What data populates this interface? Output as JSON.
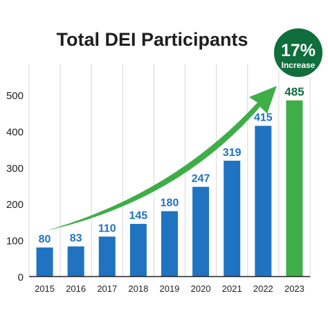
{
  "chart_data": {
    "type": "bar",
    "title": "Total DEI Participants",
    "categories": [
      "2015",
      "2016",
      "2017",
      "2018",
      "2019",
      "2020",
      "2021",
      "2022",
      "2023"
    ],
    "values": [
      80,
      83,
      110,
      145,
      180,
      247,
      319,
      415,
      485
    ],
    "ylim": [
      0,
      500
    ],
    "yticks": [
      0,
      100,
      200,
      300,
      400,
      500
    ],
    "xlabel": "",
    "ylabel": "",
    "grid": "vertical",
    "highlight_index": 8,
    "trend_arrow": true,
    "colors": {
      "bar": "#1f73c1",
      "bar_label": "#1f73c1",
      "highlight_bar": "#3fae49",
      "highlight_label": "#0f6e3b",
      "arrow": "#3fae49",
      "badge": "#0f6e3b",
      "title": "#1e1e1e",
      "axis": "#222222",
      "grid": "#d7d7d7"
    },
    "badge": {
      "value": "17%",
      "label": "Increase"
    }
  }
}
